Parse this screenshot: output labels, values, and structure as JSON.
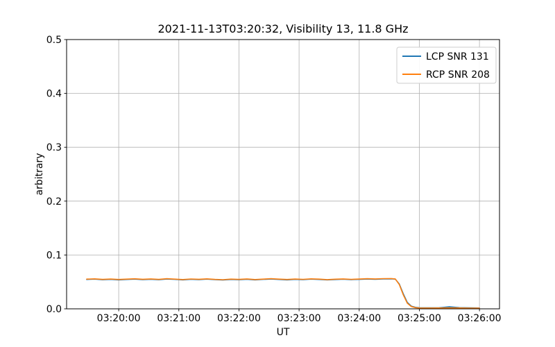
{
  "figure": {
    "title": "2021-11-13T03:20:32, Visibility 13, 11.8 GHz"
  },
  "chart_data": {
    "type": "line",
    "title": "2021-11-13T03:20:32, Visibility 13, 11.8 GHz",
    "xlabel": "UT",
    "ylabel": "arbitrary",
    "grid": true,
    "legend_position": "upper right",
    "ylim": [
      0,
      0.5
    ],
    "y_ticks": [
      {
        "v": 0.0,
        "label": "0.0"
      },
      {
        "v": 0.1,
        "label": "0.1"
      },
      {
        "v": 0.2,
        "label": "0.2"
      },
      {
        "v": 0.3,
        "label": "0.3"
      },
      {
        "v": 0.4,
        "label": "0.4"
      },
      {
        "v": 0.5,
        "label": "0.5"
      }
    ],
    "x_time_base": "03:19:00 UT (x values are seconds after this time)",
    "xlim_seconds": [
      8,
      440
    ],
    "x_ticks": [
      {
        "t": 60,
        "label": "03:20:00"
      },
      {
        "t": 120,
        "label": "03:21:00"
      },
      {
        "t": 180,
        "label": "03:22:00"
      },
      {
        "t": 240,
        "label": "03:23:00"
      },
      {
        "t": 300,
        "label": "03:24:00"
      },
      {
        "t": 360,
        "label": "03:25:00"
      },
      {
        "t": 420,
        "label": "03:26:00"
      }
    ],
    "x": [
      28,
      36,
      44,
      52,
      60,
      68,
      76,
      84,
      92,
      100,
      108,
      116,
      124,
      132,
      140,
      148,
      156,
      164,
      172,
      180,
      188,
      196,
      204,
      212,
      220,
      228,
      236,
      244,
      252,
      260,
      268,
      276,
      284,
      292,
      300,
      308,
      316,
      324,
      332,
      336,
      340,
      344,
      348,
      352,
      356,
      360,
      370,
      380,
      390,
      400,
      410,
      420
    ],
    "series": [
      {
        "name": "LCP SNR 131",
        "color": "#1f77b4",
        "values": [
          0.0545,
          0.0551,
          0.054,
          0.0547,
          0.0538,
          0.0545,
          0.0552,
          0.0543,
          0.0549,
          0.054,
          0.0553,
          0.0546,
          0.0537,
          0.0548,
          0.0543,
          0.0551,
          0.0541,
          0.0535,
          0.0545,
          0.054,
          0.0549,
          0.0538,
          0.0546,
          0.0553,
          0.0545,
          0.0538,
          0.0547,
          0.0542,
          0.0551,
          0.0545,
          0.0537,
          0.0544,
          0.055,
          0.0542,
          0.0547,
          0.0553,
          0.0549,
          0.0554,
          0.0557,
          0.0551,
          0.046,
          0.028,
          0.012,
          0.005,
          0.0028,
          0.002,
          0.0018,
          0.002,
          0.0038,
          0.0022,
          0.0018,
          0.0016
        ]
      },
      {
        "name": "RCP SNR 208",
        "color": "#ff7f0e",
        "values": [
          0.0551,
          0.0557,
          0.0546,
          0.0553,
          0.0545,
          0.0551,
          0.0558,
          0.0549,
          0.0555,
          0.0546,
          0.0559,
          0.0552,
          0.0544,
          0.0554,
          0.0549,
          0.0557,
          0.0547,
          0.0541,
          0.0551,
          0.0546,
          0.0555,
          0.0544,
          0.0552,
          0.0559,
          0.0551,
          0.0545,
          0.0553,
          0.0548,
          0.0557,
          0.0551,
          0.0543,
          0.055,
          0.0556,
          0.0548,
          0.0553,
          0.0559,
          0.0555,
          0.056,
          0.0562,
          0.0556,
          0.045,
          0.026,
          0.0105,
          0.0042,
          0.0022,
          0.0016,
          0.0014,
          0.0015,
          0.0017,
          0.0015,
          0.0013,
          0.0012
        ]
      }
    ]
  }
}
